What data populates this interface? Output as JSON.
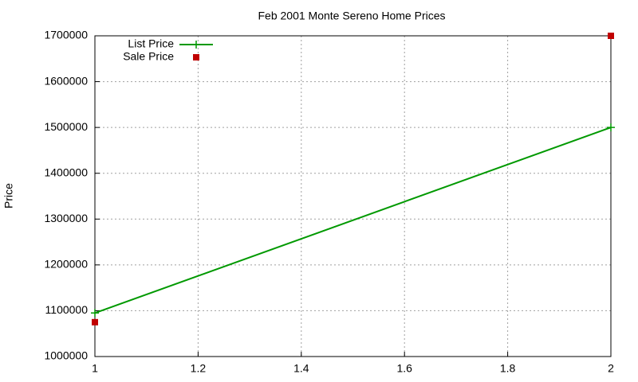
{
  "chart_data": {
    "type": "line",
    "title": "Feb 2001 Monte Sereno Home Prices",
    "y_label": "Price",
    "x": [
      1,
      2
    ],
    "series": [
      {
        "name": "List Price",
        "color": "#009900",
        "style": "linespoints",
        "values": [
          1095000,
          1500000
        ]
      },
      {
        "name": "Sale Price",
        "color": "#c00000",
        "style": "points",
        "values": [
          1075000,
          1700000
        ]
      }
    ],
    "xlim": [
      1,
      2
    ],
    "xticks": [
      1,
      1.2,
      1.4,
      1.6,
      1.8,
      2
    ],
    "ylim": [
      1000000,
      1700000
    ],
    "yticks": [
      1000000,
      1100000,
      1200000,
      1300000,
      1400000,
      1500000,
      1600000,
      1700000
    ],
    "grid": true,
    "legend": "upper-left"
  }
}
